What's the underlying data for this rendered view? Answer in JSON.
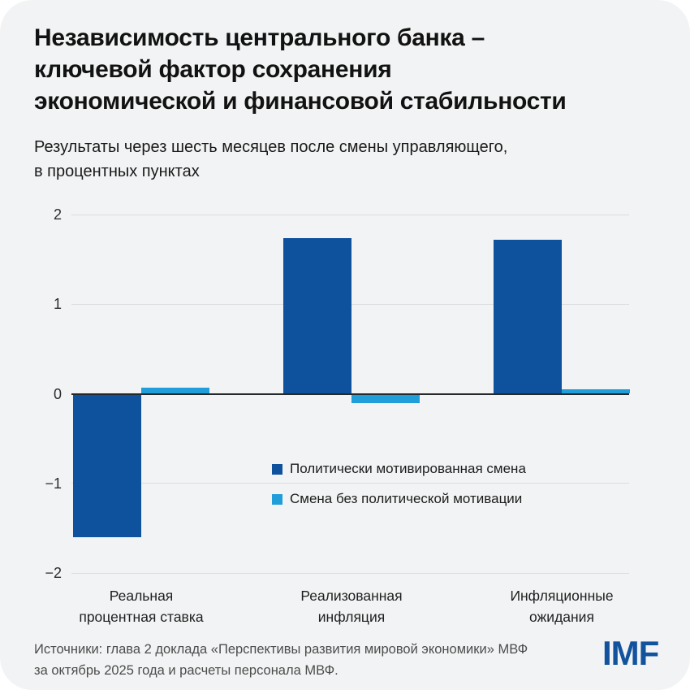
{
  "header": {
    "title_lines": [
      "Независимость центрального банка –",
      "ключевой фактор сохранения",
      "экономической и финансовой стабильности"
    ],
    "subtitle_lines": [
      "Результаты через шесть месяцев после смены управляющего,",
      "в процентных пунктах"
    ]
  },
  "chart_data": {
    "type": "bar",
    "title": "Результаты через шесть месяцев после смены управляющего, в процентных пунктах",
    "categories": [
      "Реальная процентная ставка",
      "Реализованная инфляция",
      "Инфляционные ожидания"
    ],
    "category_label_lines": [
      [
        "Реальная",
        "процентная ставка"
      ],
      [
        "Реализованная",
        "инфляция"
      ],
      [
        "Инфляционные",
        "ожидания"
      ]
    ],
    "series": [
      {
        "name": "Политически мотивированная смена",
        "color": "#0e529e",
        "values": [
          -1.6,
          1.74,
          1.72
        ]
      },
      {
        "name": "Смена без политической мотивации",
        "color": "#1f9ed9",
        "values": [
          0.07,
          -0.1,
          0.05
        ]
      }
    ],
    "ylim": [
      -2,
      2
    ],
    "yticks": [
      {
        "value": 2,
        "label": "2"
      },
      {
        "value": 1,
        "label": "1"
      },
      {
        "value": 0,
        "label": "0"
      },
      {
        "value": -1,
        "label": "−1"
      },
      {
        "value": -2,
        "label": "−2"
      }
    ],
    "grid": true,
    "legend_position": "inside-center"
  },
  "footer": {
    "source_lines": [
      "Источники: глава 2 доклада «Перспективы развития мировой экономики» МВФ",
      "за октябрь 2025 года и расчеты персонала МВФ."
    ],
    "logo_text": "IMF"
  },
  "colors": {
    "background": "#f2f3f4",
    "series_dark": "#0e529e",
    "series_light": "#1f9ed9",
    "grid": "#dadcde",
    "zero_line": "#26292c",
    "logo": "#11539d"
  }
}
